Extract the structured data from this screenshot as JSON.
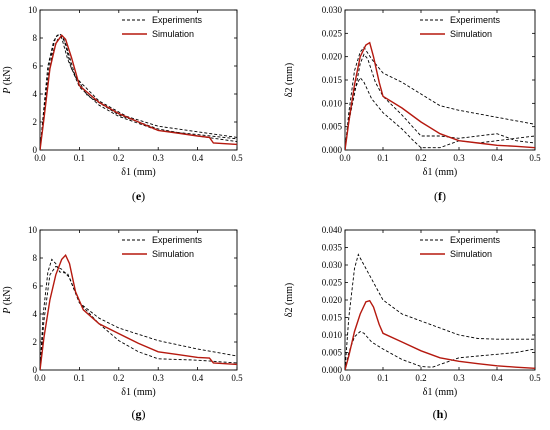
{
  "colors": {
    "experiments": "#000000",
    "simulation": "#b5190f",
    "frame": "#000000"
  },
  "chart_data": [
    {
      "type": "line",
      "panel_label": "e",
      "xlabel": "δ1 (mm)",
      "ylabel_main": "P",
      "ylabel_unit": " (kN)",
      "xlim": [
        0,
        0.5
      ],
      "ylim": [
        0,
        10
      ],
      "x_ticks": [
        0,
        0.1,
        0.2,
        0.3,
        0.4,
        0.5
      ],
      "x_tick_labels": [
        "0.0",
        "0.1",
        "0.2",
        "0.3",
        "0.4",
        "0.5"
      ],
      "y_ticks": [
        0,
        2,
        4,
        6,
        8,
        10
      ],
      "y_tick_labels": [
        "0",
        "2",
        "4",
        "6",
        "8",
        "10"
      ],
      "legend": [
        "Experiments",
        "Simulation"
      ],
      "series": [
        {
          "name": "Experiments",
          "style": "dashed",
          "points": [
            [
              0,
              0
            ],
            [
              0.008,
              2.5
            ],
            [
              0.02,
              6.0
            ],
            [
              0.035,
              7.8
            ],
            [
              0.045,
              8.2
            ],
            [
              0.055,
              8.0
            ],
            [
              0.07,
              6.5
            ],
            [
              0.1,
              4.5
            ],
            [
              0.15,
              3.2
            ],
            [
              0.2,
              2.4
            ],
            [
              0.3,
              1.4
            ],
            [
              0.4,
              1.1
            ],
            [
              0.5,
              0.8
            ]
          ]
        },
        {
          "name": "Experiments",
          "style": "dashed",
          "points": [
            [
              0,
              0
            ],
            [
              0.01,
              2.8
            ],
            [
              0.025,
              6.5
            ],
            [
              0.04,
              8.1
            ],
            [
              0.05,
              8.3
            ],
            [
              0.06,
              8.0
            ],
            [
              0.08,
              5.8
            ],
            [
              0.12,
              3.9
            ],
            [
              0.2,
              2.5
            ],
            [
              0.3,
              1.5
            ],
            [
              0.4,
              1.0
            ],
            [
              0.5,
              0.6
            ]
          ]
        },
        {
          "name": "Experiments",
          "style": "dashed",
          "points": [
            [
              0,
              0
            ],
            [
              0.012,
              3.0
            ],
            [
              0.03,
              6.8
            ],
            [
              0.045,
              7.9
            ],
            [
              0.055,
              8.1
            ],
            [
              0.065,
              7.6
            ],
            [
              0.09,
              5.2
            ],
            [
              0.15,
              3.5
            ],
            [
              0.22,
              2.4
            ],
            [
              0.3,
              1.7
            ],
            [
              0.4,
              1.3
            ],
            [
              0.5,
              0.9
            ]
          ]
        },
        {
          "name": "Simulation",
          "style": "solid",
          "points": [
            [
              0,
              0
            ],
            [
              0.01,
              2.2
            ],
            [
              0.025,
              5.8
            ],
            [
              0.04,
              7.6
            ],
            [
              0.055,
              8.2
            ],
            [
              0.065,
              7.9
            ],
            [
              0.08,
              6.6
            ],
            [
              0.1,
              4.6
            ],
            [
              0.15,
              3.4
            ],
            [
              0.2,
              2.6
            ],
            [
              0.25,
              2.0
            ],
            [
              0.3,
              1.4
            ],
            [
              0.35,
              1.2
            ],
            [
              0.4,
              1.0
            ],
            [
              0.43,
              0.9
            ],
            [
              0.44,
              0.5
            ],
            [
              0.5,
              0.4
            ]
          ]
        }
      ]
    },
    {
      "type": "line",
      "panel_label": "f",
      "xlabel": "δ1 (mm)",
      "ylabel_main": "δ2 (mm)",
      "ylabel_unit": "",
      "xlim": [
        0,
        0.5
      ],
      "ylim": [
        0,
        0.03
      ],
      "x_ticks": [
        0,
        0.1,
        0.2,
        0.3,
        0.4,
        0.5
      ],
      "x_tick_labels": [
        "0.0",
        "0.1",
        "0.2",
        "0.3",
        "0.4",
        "0.5"
      ],
      "y_ticks": [
        0,
        0.005,
        0.01,
        0.015,
        0.02,
        0.025,
        0.03
      ],
      "y_tick_labels": [
        "0.000",
        "0.005",
        "0.010",
        "0.015",
        "0.020",
        "0.025",
        "0.030"
      ],
      "legend": [
        "Experiments",
        "Simulation"
      ],
      "series": [
        {
          "name": "Experiments",
          "style": "dashed",
          "points": [
            [
              0,
              0
            ],
            [
              0.01,
              0.008
            ],
            [
              0.025,
              0.017
            ],
            [
              0.04,
              0.021
            ],
            [
              0.05,
              0.022
            ],
            [
              0.07,
              0.0195
            ],
            [
              0.1,
              0.0165
            ],
            [
              0.15,
              0.0145
            ],
            [
              0.2,
              0.012
            ],
            [
              0.25,
              0.0095
            ],
            [
              0.3,
              0.0085
            ],
            [
              0.4,
              0.007
            ],
            [
              0.5,
              0.0055
            ]
          ]
        },
        {
          "name": "Experiments",
          "style": "dashed",
          "points": [
            [
              0,
              0
            ],
            [
              0.01,
              0.007
            ],
            [
              0.025,
              0.013
            ],
            [
              0.04,
              0.0155
            ],
            [
              0.05,
              0.0145
            ],
            [
              0.07,
              0.011
            ],
            [
              0.1,
              0.008
            ],
            [
              0.15,
              0.0045
            ],
            [
              0.18,
              0.002
            ],
            [
              0.2,
              0.0005
            ],
            [
              0.25,
              0.0005
            ],
            [
              0.3,
              0.002
            ],
            [
              0.35,
              0.0015
            ],
            [
              0.4,
              0.002
            ],
            [
              0.45,
              0.0025
            ],
            [
              0.5,
              0.003
            ]
          ]
        },
        {
          "name": "Experiments",
          "style": "dashed",
          "points": [
            [
              0,
              0
            ],
            [
              0.01,
              0.006
            ],
            [
              0.025,
              0.012
            ],
            [
              0.04,
              0.0185
            ],
            [
              0.05,
              0.0205
            ],
            [
              0.06,
              0.0195
            ],
            [
              0.08,
              0.0145
            ],
            [
              0.1,
              0.0115
            ],
            [
              0.15,
              0.0075
            ],
            [
              0.2,
              0.003
            ],
            [
              0.25,
              0.003
            ],
            [
              0.3,
              0.0025
            ],
            [
              0.35,
              0.003
            ],
            [
              0.4,
              0.0035
            ],
            [
              0.45,
              0.002
            ],
            [
              0.5,
              0.0015
            ]
          ]
        },
        {
          "name": "Simulation",
          "style": "solid",
          "points": [
            [
              0,
              0
            ],
            [
              0.01,
              0.006
            ],
            [
              0.025,
              0.014
            ],
            [
              0.04,
              0.02
            ],
            [
              0.055,
              0.0225
            ],
            [
              0.065,
              0.023
            ],
            [
              0.075,
              0.02
            ],
            [
              0.09,
              0.0145
            ],
            [
              0.1,
              0.0115
            ],
            [
              0.15,
              0.009
            ],
            [
              0.2,
              0.006
            ],
            [
              0.25,
              0.0035
            ],
            [
              0.3,
              0.002
            ],
            [
              0.35,
              0.0015
            ],
            [
              0.4,
              0.001
            ],
            [
              0.45,
              0.0008
            ],
            [
              0.5,
              0.0005
            ]
          ]
        }
      ]
    },
    {
      "type": "line",
      "panel_label": "g",
      "xlabel": "δ1 (mm)",
      "ylabel_main": "P",
      "ylabel_unit": " (kN)",
      "xlim": [
        0,
        0.5
      ],
      "ylim": [
        0,
        10
      ],
      "x_ticks": [
        0,
        0.1,
        0.2,
        0.3,
        0.4,
        0.5
      ],
      "x_tick_labels": [
        "0.0",
        "0.1",
        "0.2",
        "0.3",
        "0.4",
        "0.5"
      ],
      "y_ticks": [
        0,
        2,
        4,
        6,
        8,
        10
      ],
      "y_tick_labels": [
        "0",
        "2",
        "4",
        "6",
        "8",
        "10"
      ],
      "legend": [
        "Experiments",
        "Simulation"
      ],
      "series": [
        {
          "name": "Experiments",
          "style": "dashed",
          "points": [
            [
              0,
              0
            ],
            [
              0.008,
              4.0
            ],
            [
              0.02,
              7.0
            ],
            [
              0.03,
              7.9
            ],
            [
              0.04,
              7.6
            ],
            [
              0.05,
              7.0
            ],
            [
              0.07,
              6.9
            ],
            [
              0.1,
              4.8
            ],
            [
              0.15,
              3.3
            ],
            [
              0.2,
              2.1
            ],
            [
              0.25,
              1.3
            ],
            [
              0.3,
              0.8
            ],
            [
              0.4,
              0.7
            ],
            [
              0.5,
              0.5
            ]
          ]
        },
        {
          "name": "Experiments",
          "style": "dashed",
          "points": [
            [
              0,
              0
            ],
            [
              0.01,
              3.5
            ],
            [
              0.025,
              6.8
            ],
            [
              0.04,
              7.4
            ],
            [
              0.055,
              7.2
            ],
            [
              0.075,
              6.6
            ],
            [
              0.1,
              4.8
            ],
            [
              0.15,
              3.7
            ],
            [
              0.2,
              3.0
            ],
            [
              0.3,
              2.1
            ],
            [
              0.4,
              1.5
            ],
            [
              0.5,
              1.0
            ]
          ]
        },
        {
          "name": "Simulation",
          "style": "solid",
          "points": [
            [
              0,
              0
            ],
            [
              0.01,
              2.3
            ],
            [
              0.025,
              5.0
            ],
            [
              0.04,
              6.8
            ],
            [
              0.055,
              7.9
            ],
            [
              0.065,
              8.2
            ],
            [
              0.075,
              7.6
            ],
            [
              0.09,
              5.6
            ],
            [
              0.11,
              4.3
            ],
            [
              0.15,
              3.3
            ],
            [
              0.2,
              2.6
            ],
            [
              0.25,
              1.9
            ],
            [
              0.3,
              1.3
            ],
            [
              0.35,
              1.1
            ],
            [
              0.4,
              0.9
            ],
            [
              0.43,
              0.85
            ],
            [
              0.44,
              0.5
            ],
            [
              0.5,
              0.4
            ]
          ]
        }
      ]
    },
    {
      "type": "line",
      "panel_label": "h",
      "xlabel": "δ1 (mm)",
      "ylabel_main": "δ2 (mm)",
      "ylabel_unit": "",
      "xlim": [
        0,
        0.5
      ],
      "ylim": [
        0,
        0.04
      ],
      "x_ticks": [
        0,
        0.1,
        0.2,
        0.3,
        0.4,
        0.5
      ],
      "x_tick_labels": [
        "0.0",
        "0.1",
        "0.2",
        "0.3",
        "0.4",
        "0.5"
      ],
      "y_ticks": [
        0,
        0.005,
        0.01,
        0.015,
        0.02,
        0.025,
        0.03,
        0.035,
        0.04
      ],
      "y_tick_labels": [
        "0.000",
        "0.005",
        "0.010",
        "0.015",
        "0.020",
        "0.025",
        "0.030",
        "0.035",
        "0.040"
      ],
      "legend": [
        "Experiments",
        "Simulation"
      ],
      "series": [
        {
          "name": "Experiments",
          "style": "dashed",
          "points": [
            [
              0,
              0
            ],
            [
              0.01,
              0.015
            ],
            [
              0.025,
              0.029
            ],
            [
              0.035,
              0.033
            ],
            [
              0.05,
              0.03
            ],
            [
              0.07,
              0.026
            ],
            [
              0.1,
              0.02
            ],
            [
              0.15,
              0.016
            ],
            [
              0.2,
              0.014
            ],
            [
              0.25,
              0.012
            ],
            [
              0.3,
              0.01
            ],
            [
              0.35,
              0.009
            ],
            [
              0.4,
              0.0088
            ],
            [
              0.5,
              0.0088
            ]
          ]
        },
        {
          "name": "Experiments",
          "style": "dashed",
          "points": [
            [
              0,
              0
            ],
            [
              0.01,
              0.005
            ],
            [
              0.025,
              0.0095
            ],
            [
              0.04,
              0.011
            ],
            [
              0.05,
              0.0105
            ],
            [
              0.07,
              0.008
            ],
            [
              0.1,
              0.006
            ],
            [
              0.15,
              0.003
            ],
            [
              0.2,
              0.001
            ],
            [
              0.23,
              0.0008
            ],
            [
              0.3,
              0.0035
            ],
            [
              0.35,
              0.004
            ],
            [
              0.4,
              0.0045
            ],
            [
              0.45,
              0.005
            ],
            [
              0.5,
              0.006
            ]
          ]
        },
        {
          "name": "Simulation",
          "style": "solid",
          "points": [
            [
              0,
              0
            ],
            [
              0.01,
              0.004
            ],
            [
              0.025,
              0.011
            ],
            [
              0.04,
              0.016
            ],
            [
              0.055,
              0.0195
            ],
            [
              0.065,
              0.0198
            ],
            [
              0.075,
              0.018
            ],
            [
              0.09,
              0.013
            ],
            [
              0.1,
              0.0105
            ],
            [
              0.15,
              0.008
            ],
            [
              0.2,
              0.0055
            ],
            [
              0.25,
              0.0035
            ],
            [
              0.3,
              0.0025
            ],
            [
              0.35,
              0.0018
            ],
            [
              0.4,
              0.0012
            ],
            [
              0.45,
              0.0008
            ],
            [
              0.5,
              0.0005
            ]
          ]
        }
      ]
    }
  ]
}
